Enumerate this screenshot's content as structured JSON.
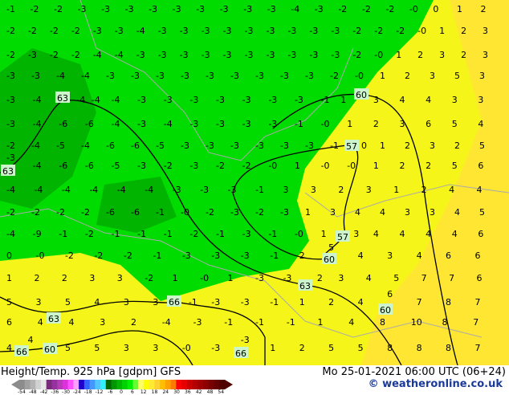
{
  "title": "Height/Temp. 925 hPa [gdpm] GFS",
  "valid_time": "Mo 25-01-2021 06:00 UTC (06+24)",
  "copyright": "© weatheronline.co.uk",
  "colorbar": {
    "ticks": [
      "-54",
      "-48",
      "-42",
      "-36",
      "-30",
      "-24",
      "-18",
      "-12",
      "-6",
      "0",
      "6",
      "12",
      "18",
      "24",
      "30",
      "36",
      "42",
      "48",
      "54"
    ],
    "colors": [
      "#8c8c8c",
      "#a0a0a0",
      "#b4b4b4",
      "#d2d2d2",
      "#e6e6e6",
      "#7a2a7a",
      "#9632a0",
      "#b43cb4",
      "#dc32dc",
      "#ff50ff",
      "#ffa0ff",
      "#1e00c8",
      "#3264ff",
      "#4696ff",
      "#50c8ff",
      "#32f0ff",
      "#006400",
      "#009600",
      "#00b400",
      "#00d200",
      "#00f000",
      "#64ff32",
      "#ffff64",
      "#ffff00",
      "#ffeb32",
      "#ffd232",
      "#ffbe00",
      "#ffa000",
      "#ff7800",
      "#ff0000",
      "#e60000",
      "#c80000",
      "#b40000",
      "#a00000",
      "#8c0000",
      "#780000",
      "#640000",
      "#500000"
    ]
  },
  "map_colors": {
    "green_dark": "#00b400",
    "green": "#00dc00",
    "green_light": "#32f032",
    "yellow": "#f5f519",
    "yellow_orange": "#ffe632"
  },
  "contour_labels": [
    "63",
    "60",
    "57",
    "60",
    "57",
    "60",
    "63",
    "66",
    "63",
    "60",
    "63",
    "66",
    "66"
  ],
  "temperature_rows": [
    [
      "-1",
      "-2",
      "-2",
      "-3",
      "-3",
      "-3",
      "-3",
      "-3",
      "-3",
      "-3",
      "-3",
      "-3",
      "-4",
      "-3",
      "-2",
      "-2",
      "-2",
      "-0",
      "0",
      "1",
      "2"
    ],
    [
      "-2",
      "-2",
      "-2",
      "-2",
      "-3",
      "-3",
      "-4",
      "-3",
      "-3",
      "-3",
      "-3",
      "-3",
      "-3",
      "-3",
      "-3",
      "-3",
      "-2",
      "-2",
      "-2",
      "-0",
      "1",
      "2",
      "3"
    ],
    [
      "-2",
      "-3",
      "-2",
      "-2",
      "-4",
      "-4",
      "-3",
      "-3",
      "-3",
      "-3",
      "-3",
      "-3",
      "-3",
      "-3",
      "-3",
      "-3",
      "-2",
      "-0",
      "1",
      "2",
      "3",
      "2",
      "3"
    ],
    [
      "-3",
      "-3",
      "-4",
      "-4",
      "-3",
      "-3",
      "-3",
      "-3",
      "-3",
      "-3",
      "-3",
      "-3",
      "-3",
      "-2",
      "-0",
      "1",
      "2",
      "3",
      "5",
      "3"
    ],
    [
      "-3",
      "-4",
      "-4",
      "-4",
      "-4",
      "-3",
      "-3",
      "-3",
      "-3",
      "-3",
      "-3",
      "-3",
      "-1",
      "1",
      "3",
      "4",
      "4",
      "3",
      "3"
    ],
    [
      "-3",
      "-4",
      "-6",
      "-6",
      "-4",
      "-3",
      "-4",
      "-3",
      "-3",
      "-3",
      "-3",
      "-1",
      "-0",
      "1",
      "2",
      "3",
      "6",
      "5",
      "4"
    ],
    [
      "-2",
      "-4",
      "-5",
      "-4",
      "-6",
      "-6",
      "-5",
      "-3",
      "-3",
      "-3",
      "-3",
      "-3",
      "-3",
      "-1",
      "0",
      "1",
      "2",
      "3",
      "2",
      "5"
    ],
    [
      "-3",
      "-4",
      "-6",
      "-6",
      "-5",
      "-3",
      "-2",
      "-3",
      "-2",
      "-2",
      "-0",
      "1",
      "-0",
      "-0",
      "1",
      "2",
      "2",
      "5",
      "6"
    ],
    [
      "-4",
      "-4",
      "-4",
      "-4",
      "-4",
      "-4",
      "-3",
      "-3",
      "-3",
      "-1",
      "3",
      "3",
      "2",
      "3",
      "1",
      "2",
      "4",
      "4"
    ],
    [
      "-2",
      "-2",
      "-2",
      "-2",
      "-6",
      "-6",
      "-1",
      "-0",
      "-2",
      "-3",
      "-2",
      "-3",
      "1",
      "3",
      "4",
      "4",
      "3",
      "3",
      "4",
      "5"
    ],
    [
      "-4",
      "-9",
      "-1",
      "-2",
      "-1",
      "-1",
      "-1",
      "-2",
      "-1",
      "-3",
      "-1",
      "-0",
      "1",
      "3",
      "4",
      "4",
      "4",
      "4",
      "6"
    ],
    [
      "0",
      "-0",
      "-2",
      "-2",
      "-2",
      "-1",
      "-3",
      "-3",
      "-3",
      "-1",
      "2",
      "5",
      "4",
      "3",
      "4",
      "6",
      "6"
    ],
    [
      "1",
      "2",
      "2",
      "3",
      "3",
      "-2",
      "1",
      "-0",
      "1",
      "-3",
      "-3",
      "2",
      "3",
      "4",
      "5",
      "7",
      "7",
      "6"
    ],
    [
      "5",
      "3",
      "5",
      "4",
      "3",
      "3",
      "-1",
      "-3",
      "-3",
      "-1",
      "1",
      "2",
      "4",
      "6",
      "7",
      "8",
      "7"
    ],
    [
      "6",
      "4",
      "4",
      "3",
      "2",
      "-4",
      "-3",
      "-1",
      "-1",
      "-1",
      "1",
      "4",
      "8",
      "10",
      "8",
      "7"
    ],
    [
      "4",
      "4",
      "5",
      "5",
      "3",
      "3",
      "-0",
      "-3",
      "-3",
      "1",
      "2",
      "5",
      "5",
      "8",
      "8",
      "8",
      "7"
    ]
  ]
}
